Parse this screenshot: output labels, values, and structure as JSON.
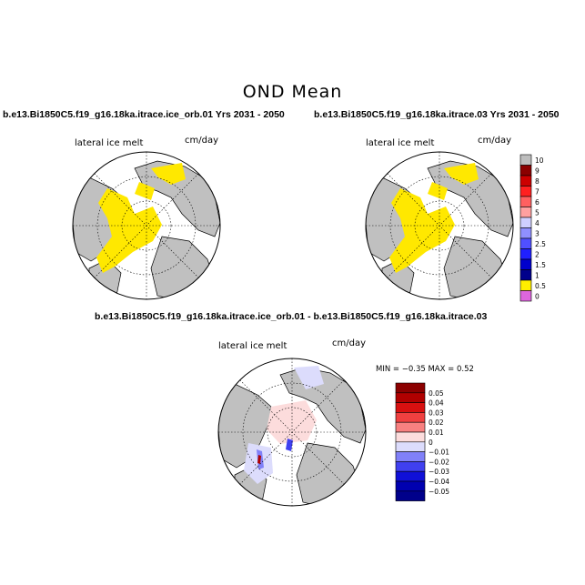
{
  "figure": {
    "title": "OND Mean",
    "panels": [
      {
        "title": "b.e13.Bi1850C5.f19_g16.18ka.itrace.ice_orb.01  Yrs 2031 - 2050",
        "field_label": "lateral ice melt",
        "units": "cm/day"
      },
      {
        "title": "b.e13.Bi1850C5.f19_g16.18ka.itrace.03  Yrs 2031 - 2050",
        "field_label": "lateral ice melt",
        "units": "cm/day"
      },
      {
        "title": "b.e13.Bi1850C5.f19_g16.18ka.itrace.ice_orb.01 - b.e13.Bi1850C5.f19_g16.18ka.itrace.03",
        "field_label": "lateral ice melt",
        "units": "cm/day",
        "min_max": "MIN =   −0.35 MAX =    0.52"
      }
    ]
  },
  "chart_data": [
    {
      "type": "heatmap",
      "title": "b.e13.Bi1850C5.f19_g16.18ka.itrace.ice_orb.01  Yrs 2031 - 2050",
      "field": "lateral ice melt",
      "units": "cm/day",
      "projection": "north polar stereographic",
      "colorbar_labels": [
        "10",
        "9",
        "8",
        "7",
        "6",
        "5",
        "4",
        "3",
        "2.5",
        "2",
        "1.5",
        "1",
        "0.5",
        "0"
      ],
      "colorbar_colors": [
        "#bdbdbd",
        "#8b0000",
        "#cc0000",
        "#ff2020",
        "#ff6060",
        "#ffa0a0",
        "#d0d0ff",
        "#9090ff",
        "#5050ff",
        "#2020ff",
        "#0000cc",
        "#00008b",
        "#ffee00",
        "#dd66dd"
      ],
      "dominant_value_bin": "0 - 0.5"
    },
    {
      "type": "heatmap",
      "title": "b.e13.Bi1850C5.f19_g16.18ka.itrace.03  Yrs 2031 - 2050",
      "field": "lateral ice melt",
      "units": "cm/day",
      "projection": "north polar stereographic",
      "colorbar_labels": [
        "10",
        "9",
        "8",
        "7",
        "6",
        "5",
        "4",
        "3",
        "2.5",
        "2",
        "1.5",
        "1",
        "0.5",
        "0"
      ],
      "dominant_value_bin": "0 - 0.5"
    },
    {
      "type": "heatmap",
      "title": "b.e13.Bi1850C5.f19_g16.18ka.itrace.ice_orb.01 - b.e13.Bi1850C5.f19_g16.18ka.itrace.03",
      "field": "lateral ice melt",
      "units": "cm/day",
      "projection": "north polar stereographic",
      "min": -0.35,
      "max": 0.52,
      "colorbar_labels": [
        "0.05",
        "0.04",
        "0.03",
        "0.02",
        "0.01",
        "0",
        "−0.01",
        "−0.02",
        "−0.03",
        "−0.04",
        "−0.05"
      ],
      "colorbar_colors": [
        "#8b0000",
        "#b00000",
        "#d81010",
        "#f04040",
        "#f88080",
        "#fcdcdc",
        "#dcdcfc",
        "#8080f8",
        "#4040f0",
        "#1010d8",
        "#0000b0",
        "#00008b"
      ]
    }
  ]
}
